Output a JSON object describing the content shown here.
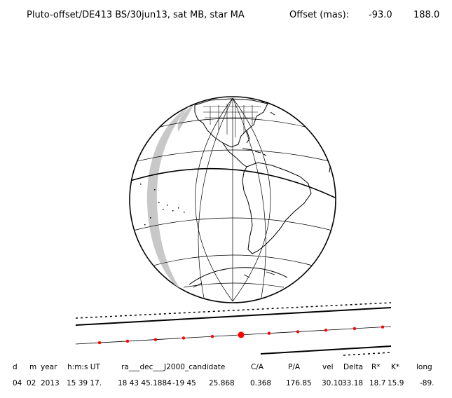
{
  "header": {
    "title": "Pluto-offset/DE413 BS/30jun13, sat MB, star MA",
    "offset_label": "Offset (mas):",
    "offset_ra": "-93.0",
    "offset_dec": "188.0"
  },
  "table": {
    "columns": [
      "d",
      "m",
      "year",
      "h:m:s UT",
      "ra___dec___J2000_candidate",
      "C/A",
      "P/A",
      "vel",
      "Delta",
      "R*",
      "K*",
      "long"
    ],
    "values": [
      "04",
      "02",
      "2013",
      "15 39 17.",
      "18 43 45.1884",
      "-19 45",
      "25.868",
      "0.368",
      "176.85",
      "30.10",
      "33.18",
      "18.7",
      "15.9",
      "-89."
    ]
  },
  "colors": {
    "ink": "#000000",
    "shadow": "#c8c8c8",
    "track_dot": "#ff0000"
  }
}
